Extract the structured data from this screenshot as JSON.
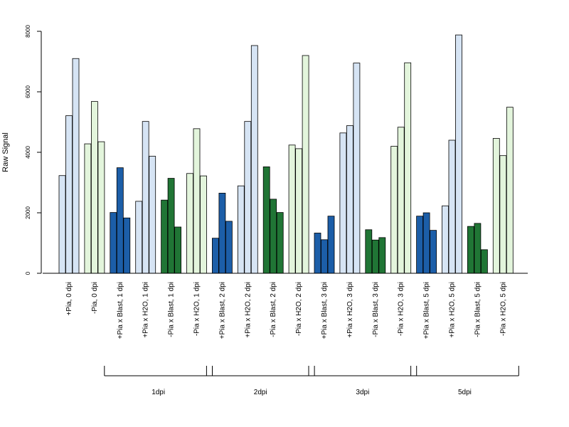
{
  "chart_data": {
    "type": "bar",
    "ylabel": "Raw Signal",
    "ylim": [
      0,
      8000
    ],
    "yticks": [
      0,
      2000,
      4000,
      6000,
      8000
    ],
    "categories": [
      "+Pia, 0 dpi",
      "-Pia, 0 dpi",
      "+Pia x Blast, 1 dpi",
      "+Pia x H2O, 1 dpi",
      "-Pia x Blast, 1 dpi",
      "-Pia x H2O, 1 dpi",
      "+Pia x Blast, 2 dpi",
      "+Pia x H2O, 2 dpi",
      "-Pia x Blast, 2 dpi",
      "-Pia x H2O, 2 dpi",
      "+Pia x Blast, 3 dpi",
      "+Pia x H2O, 3 dpi",
      "-Pia x Blast, 3 dpi",
      "-Pia x H2O, 3 dpi",
      "+Pia x Blast, 5 dpi",
      "+Pia x H2O, 5 dpi",
      "-Pia x Blast, 5 dpi",
      "-Pia x H2O, 5 dpi"
    ],
    "group_colors": [
      "#d6e4f4",
      "#e3f5dc",
      "#1c5ea8",
      "#d6e4f4",
      "#207535",
      "#e3f5dc",
      "#1c5ea8",
      "#d6e4f4",
      "#207535",
      "#e3f5dc",
      "#1c5ea8",
      "#d6e4f4",
      "#207535",
      "#e3f5dc",
      "#1c5ea8",
      "#d6e4f4",
      "#207535",
      "#e3f5dc"
    ],
    "values": [
      [
        3230,
        5210,
        7100
      ],
      [
        4280,
        5680,
        4350
      ],
      [
        2010,
        3490,
        1830
      ],
      [
        2380,
        5020,
        3870
      ],
      [
        2420,
        3140,
        1530
      ],
      [
        3300,
        4780,
        3220
      ],
      [
        1160,
        2650,
        1720
      ],
      [
        2890,
        5020,
        7530
      ],
      [
        3520,
        2450,
        2010
      ],
      [
        4240,
        4120,
        7200
      ],
      [
        1330,
        1110,
        1890
      ],
      [
        4640,
        4880,
        6950
      ],
      [
        1440,
        1100,
        1180
      ],
      [
        4200,
        4830,
        6960
      ],
      [
        1890,
        2000,
        1420
      ],
      [
        2230,
        4400,
        7880
      ],
      [
        1550,
        1650,
        780
      ],
      [
        4460,
        3890,
        5490
      ]
    ],
    "brackets": [
      {
        "label": "1dpi",
        "from": 2,
        "to": 5
      },
      {
        "label": "2dpi",
        "from": 6,
        "to": 9
      },
      {
        "label": "3dpi",
        "from": 10,
        "to": 13
      },
      {
        "label": "5dpi",
        "from": 14,
        "to": 17
      }
    ]
  }
}
